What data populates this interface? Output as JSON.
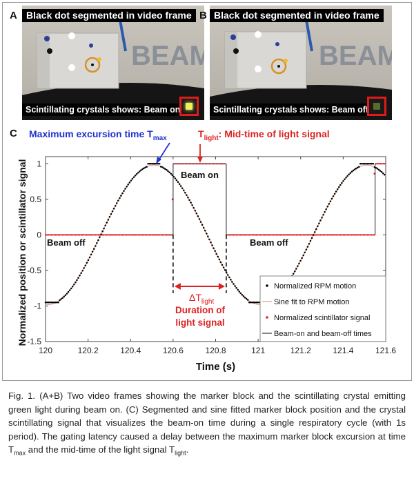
{
  "panels": {
    "a": {
      "letter": "A",
      "title": "Black dot segmented in video frame",
      "caption": "Scintillating crystals shows: Beam on",
      "crystal_color": "#f0f05a"
    },
    "b": {
      "letter": "B",
      "title": "Black dot segmented in video frame",
      "caption": "Scintillating crystals shows: Beam off",
      "crystal_color": "#5a6a2a"
    },
    "c": {
      "letter": "C"
    },
    "background_logo": "BEAM"
  },
  "chart_data": {
    "type": "scatter",
    "xlabel": "Time (s)",
    "ylabel": "Normalized position or scintillator signal",
    "xlim": [
      120,
      121.6
    ],
    "ylim": [
      -1.5,
      1.1
    ],
    "x_ticks": [
      "120",
      "120.2",
      "120.4",
      "120.6",
      "120.8",
      "121",
      "121.2",
      "121.4",
      "121.6"
    ],
    "y_ticks": [
      "1",
      "0.5",
      "0",
      "-0.5",
      "-1",
      "-1.5"
    ],
    "legend_position": "bottom-right",
    "series": [
      {
        "name": "Normalized RPM motion",
        "color": "#000000",
        "marker": "dot",
        "description_of_shape": "sampled sinusoidal respiratory motion, period 1 s, peaks near 120.51 and 121.51, troughs at about -0.95",
        "plateau_max": 1.0,
        "plateau_min": -0.95
      },
      {
        "name": "Sine fit to RPM motion",
        "color": "#e6a48a",
        "marker": "line",
        "period": 1.0,
        "amplitude": 0.98,
        "offset": 0.0,
        "peak_time": 120.51
      },
      {
        "name": "Normalized scintillator signal",
        "color": "#dd2222",
        "marker": "dot",
        "beam_on_intervals": [
          [
            120.6,
            120.85
          ],
          [
            121.55,
            121.6
          ]
        ],
        "on_level": 1.0,
        "off_level": 0.0
      },
      {
        "name": "Beam-on and beam-off times",
        "color": "#444444",
        "marker": "vertical-line",
        "times": [
          120.6,
          120.85,
          121.55
        ]
      }
    ],
    "annotations": {
      "tmax_prefix": "Maximum excursion time T",
      "tmax_sub": "max",
      "tlight_main": "T",
      "tlight_sub": "light",
      "tlight_suffix": ": Mid-time of light signal",
      "beam_on": "Beam on",
      "beam_off_1": "Beam off",
      "beam_off_2": "Beam off",
      "delta_main": "ΔT",
      "delta_sub": "light",
      "duration_line1": "Duration of",
      "duration_line2": "light signal"
    },
    "annotation_colors": {
      "tmax": "#2233cc",
      "tlight": "#dd2222"
    }
  },
  "caption": {
    "seg1": "Fig. 1. (A+B) Two video frames showing the marker block and the scintillating crystal emitting green light during beam on. (C) Segmented and sine fitted marker block position and the crystal scintillating signal that visualizes the beam-on time during a single respiratory cycle (with 1s period). The gating latency caused a delay between the maximum marker block excursion at time T",
    "sub1": "max",
    "seg2": " and the mid-time of the light signal T",
    "sub2": "light",
    "seg3": "."
  }
}
